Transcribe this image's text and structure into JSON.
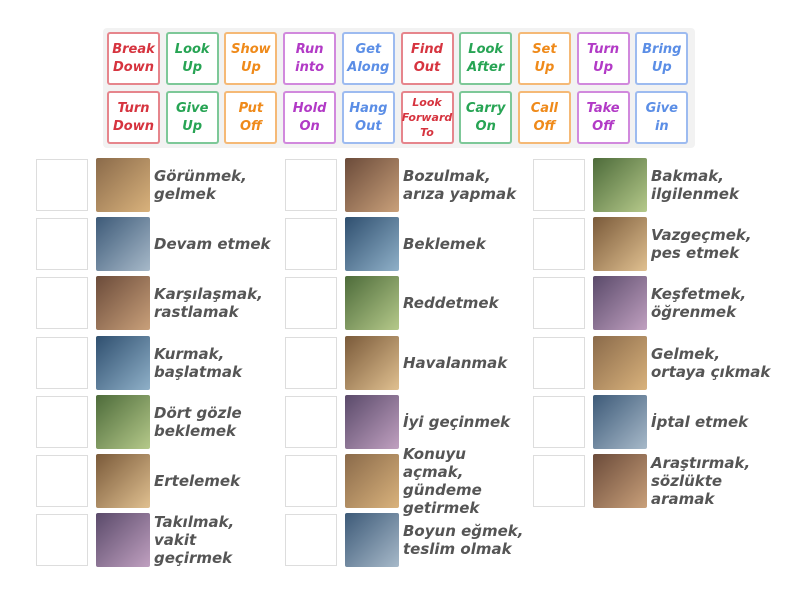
{
  "tiles": [
    {
      "label": "Break Down",
      "color": "#d6343f"
    },
    {
      "label": "Look Up",
      "color": "#27a454"
    },
    {
      "label": "Show Up",
      "color": "#ef8a1a"
    },
    {
      "label": "Run into",
      "color": "#b23ac6"
    },
    {
      "label": "Get Along",
      "color": "#5b8ee6"
    },
    {
      "label": "Find Out",
      "color": "#d6343f"
    },
    {
      "label": "Look After",
      "color": "#27a454"
    },
    {
      "label": "Set Up",
      "color": "#ef8a1a"
    },
    {
      "label": "Turn Up",
      "color": "#b23ac6"
    },
    {
      "label": "Bring Up",
      "color": "#5b8ee6"
    },
    {
      "label": "Turn Down",
      "color": "#d6343f"
    },
    {
      "label": "Give Up",
      "color": "#27a454"
    },
    {
      "label": "Put Off",
      "color": "#ef8a1a"
    },
    {
      "label": "Hold On",
      "color": "#b23ac6"
    },
    {
      "label": "Hang Out",
      "color": "#5b8ee6"
    },
    {
      "label": "Look Forward To",
      "color": "#d6343f"
    },
    {
      "label": "Carry On",
      "color": "#27a454"
    },
    {
      "label": "Call Off",
      "color": "#ef8a1a"
    },
    {
      "label": "Take Off",
      "color": "#b23ac6"
    },
    {
      "label": "Give in",
      "color": "#5b8ee6"
    }
  ],
  "columns": [
    [
      "Görünmek, gelmek",
      "Devam etmek",
      "Karşılaşmak, rastlamak",
      "Kurmak, başlatmak",
      "Dört gözle beklemek",
      "Ertelemek",
      "Takılmak, vakit geçirmek"
    ],
    [
      "Bozulmak, arıza yapmak",
      "Beklemek",
      "Reddetmek",
      "Havalanmak",
      "İyi geçinmek",
      "Konuyu açmak, gündeme getirmek",
      "Boyun eğmek, teslim olmak"
    ],
    [
      "Bakmak, ilgilenmek",
      "Vazgeçmek, pes etmek",
      "Keşfetmek, öğrenmek",
      "Gelmek, ortaya çıkmak",
      "İptal etmek",
      "Araştırmak, sözlükte aramak"
    ]
  ]
}
